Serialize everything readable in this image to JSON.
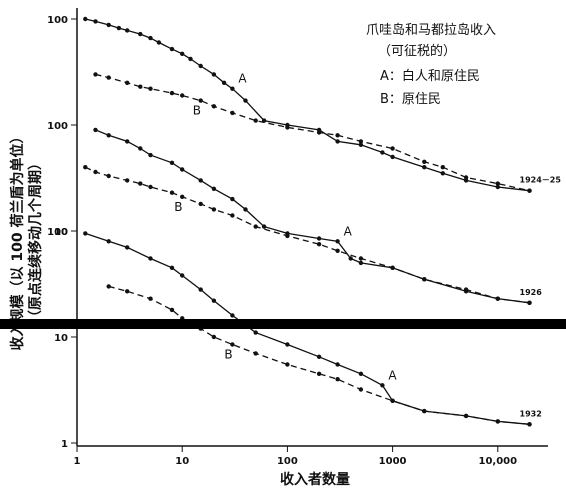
{
  "chart_data": {
    "type": "line",
    "xscale": "log",
    "yscale": "log",
    "xlim": [
      1,
      30000
    ],
    "xlabel": "收入者数量",
    "ylabel_line1": "收入规模（以 100 荷兰盾为单位）",
    "ylabel_line2": "（原点连续移动几个周期）",
    "x_ticks": [
      "1",
      "10",
      "100",
      "1000",
      "10,000"
    ],
    "y_ticks": [
      "100",
      "100",
      "100",
      "10",
      "10",
      "1"
    ],
    "legend": {
      "title": "爪哇岛和马都拉岛收入",
      "subtitle": "（可征税的）",
      "entries": [
        "A：白人和原住民",
        "B：原住民"
      ]
    },
    "panels": [
      {
        "period": "1924－25",
        "series": [
          {
            "name": "A",
            "style": "solid",
            "x": [
              1.2,
              1.5,
              2,
              2.5,
              3,
              4,
              5,
              6,
              8,
              10,
              12,
              15,
              20,
              25,
              30,
              40,
              60,
              100,
              200,
              300,
              500,
              800,
              1000,
              2000,
              3000,
              5000,
              10000,
              20000
            ],
            "y": [
              100,
              95,
              88,
              82,
              78,
              72,
              66,
              60,
              52,
              47,
              42,
              36,
              30,
              25,
              22,
              17,
              11,
              10,
              9,
              7,
              6.5,
              5.5,
              5,
              4,
              3.5,
              3,
              2.6,
              2.4
            ]
          },
          {
            "name": "B",
            "style": "dashed",
            "x": [
              1.5,
              2,
              3,
              4,
              5,
              8,
              10,
              15,
              20,
              30,
              50,
              100,
              200,
              300,
              500,
              1000,
              2000,
              3000,
              5000,
              10000,
              20000
            ],
            "y": [
              30,
              28,
              25,
              23,
              22,
              20,
              19,
              17,
              15,
              13,
              11,
              9.5,
              8.5,
              8,
              7,
              6,
              4.5,
              4,
              3.2,
              2.8,
              2.4
            ]
          }
        ]
      },
      {
        "period": "1926",
        "series": [
          {
            "name": "A",
            "style": "solid",
            "x": [
              1.5,
              2,
              3,
              4,
              5,
              8,
              10,
              15,
              20,
              30,
              40,
              60,
              100,
              200,
              300,
              400,
              500,
              1000,
              2000,
              5000,
              10000,
              20000
            ],
            "y": [
              90,
              80,
              70,
              60,
              52,
              44,
              38,
              30,
              25,
              20,
              16,
              11,
              9.5,
              8.5,
              8,
              5.5,
              5,
              4.5,
              3.5,
              2.7,
              2.3,
              2.1
            ]
          },
          {
            "name": "B",
            "style": "dashed",
            "x": [
              1.2,
              1.5,
              2,
              3,
              4,
              5,
              8,
              10,
              15,
              20,
              30,
              50,
              100,
              200,
              300,
              500,
              1000,
              2000,
              5000,
              10000,
              20000
            ],
            "y": [
              40,
              36,
              33,
              30,
              28,
              26,
              23,
              21,
              18,
              16,
              14,
              11,
              9,
              7.5,
              6.5,
              5.5,
              4.5,
              3.5,
              2.8,
              2.3,
              2.1
            ]
          }
        ]
      },
      {
        "period": "1932",
        "series": [
          {
            "name": "A",
            "style": "solid",
            "x": [
              1.2,
              2,
              3,
              5,
              8,
              10,
              15,
              20,
              30,
              50,
              100,
              200,
              300,
              500,
              800,
              1000,
              2000,
              5000,
              10000,
              20000
            ],
            "y": [
              95,
              80,
              70,
              55,
              45,
              38,
              28,
              22,
              16,
              11,
              8.5,
              6.5,
              5.5,
              4.5,
              3.5,
              2.5,
              2,
              1.8,
              1.6,
              1.5
            ]
          },
          {
            "name": "B",
            "style": "dashed",
            "x": [
              2,
              3,
              5,
              8,
              10,
              15,
              20,
              30,
              50,
              100,
              200,
              300,
              500,
              1000,
              2000,
              5000,
              10000,
              20000
            ],
            "y": [
              30,
              27,
              23,
              18,
              15,
              12,
              10,
              8.5,
              7,
              5.5,
              4.5,
              4,
              3.2,
              2.5,
              2,
              1.8,
              1.6,
              1.5
            ]
          }
        ]
      }
    ]
  }
}
